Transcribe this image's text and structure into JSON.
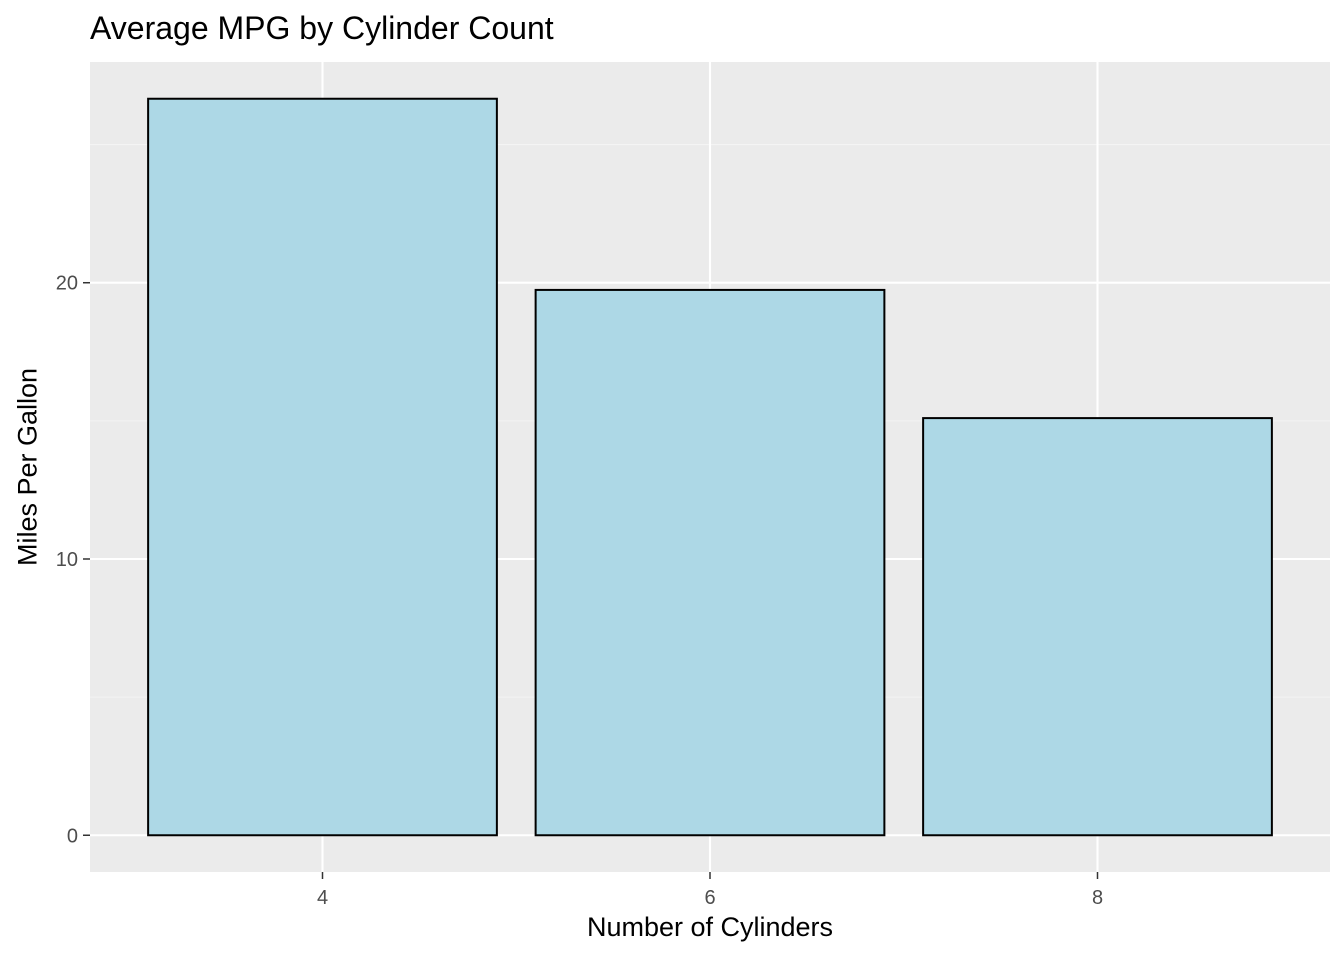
{
  "chart_data": {
    "type": "bar",
    "title": "Average MPG by Cylinder Count",
    "xlabel": "Number of Cylinders",
    "ylabel": "Miles Per Gallon",
    "categories": [
      "4",
      "6",
      "8"
    ],
    "values": [
      26.66,
      19.74,
      15.1
    ],
    "yticks": [
      0,
      10,
      20
    ],
    "ylim": [
      -1.33,
      27.99
    ],
    "grid": true,
    "legend": "none",
    "colors": {
      "bar_fill": "#ADD8E6",
      "bar_stroke": "#000000",
      "panel_background": "#EBEBEB",
      "grid_major": "#FFFFFF",
      "grid_minor": "#F4F4F4",
      "tick_label": "#4D4D4D"
    }
  }
}
